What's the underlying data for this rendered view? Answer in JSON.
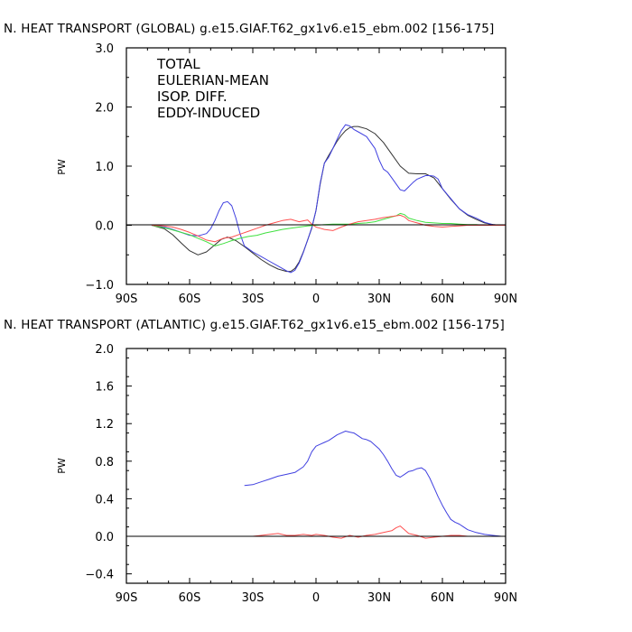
{
  "chart_data": [
    {
      "type": "line",
      "title": "N. HEAT TRANSPORT (GLOBAL) g.e15.GIAF.T62_gx1v6.e15_ebm.002 [156-175]",
      "xlabel": "",
      "ylabel": "PW",
      "xlim": [
        -90,
        90
      ],
      "ylim": [
        -1.0,
        3.0
      ],
      "xticks": [
        -90,
        -60,
        -30,
        0,
        30,
        60,
        90
      ],
      "xtick_labels": [
        "90S",
        "60S",
        "30S",
        "0",
        "30N",
        "60N",
        "90N"
      ],
      "yticks": [
        -1.0,
        0.0,
        1.0,
        2.0,
        3.0
      ],
      "ytick_labels": [
        "−1.0",
        "0.0",
        "1.0",
        "2.0",
        "3.0"
      ],
      "grid": false,
      "legend_position": "top-left",
      "series": [
        {
          "name": "TOTAL",
          "color": "#333333",
          "x": [
            -78,
            -72,
            -68,
            -64,
            -60,
            -56,
            -52,
            -48,
            -45,
            -42,
            -38,
            -34,
            -30,
            -26,
            -22,
            -18,
            -14,
            -12,
            -10,
            -8,
            -6,
            -4,
            -2,
            0,
            2,
            4,
            6,
            8,
            10,
            12,
            14,
            16,
            18,
            20,
            24,
            28,
            32,
            36,
            40,
            44,
            48,
            52,
            56,
            60,
            64,
            68,
            72,
            76,
            80,
            84,
            88,
            90
          ],
          "values": [
            0.0,
            -0.06,
            -0.16,
            -0.3,
            -0.43,
            -0.5,
            -0.45,
            -0.33,
            -0.24,
            -0.2,
            -0.26,
            -0.36,
            -0.47,
            -0.58,
            -0.67,
            -0.74,
            -0.78,
            -0.78,
            -0.73,
            -0.62,
            -0.45,
            -0.25,
            -0.05,
            0.25,
            0.7,
            1.05,
            1.18,
            1.3,
            1.42,
            1.52,
            1.6,
            1.65,
            1.67,
            1.67,
            1.63,
            1.55,
            1.4,
            1.2,
            1.0,
            0.88,
            0.87,
            0.87,
            0.8,
            0.62,
            0.44,
            0.28,
            0.17,
            0.1,
            0.04,
            0.01,
            0.0,
            0.0
          ]
        },
        {
          "name": "EULERIAN-MEAN",
          "color": "#4040e0",
          "x": [
            -78,
            -72,
            -68,
            -64,
            -60,
            -56,
            -52,
            -50,
            -48,
            -46,
            -44,
            -42,
            -40,
            -38,
            -36,
            -34,
            -30,
            -26,
            -22,
            -18,
            -14,
            -12,
            -10,
            -8,
            -6,
            -4,
            -2,
            0,
            2,
            4,
            6,
            8,
            10,
            12,
            14,
            16,
            18,
            20,
            24,
            28,
            30,
            32,
            34,
            36,
            38,
            40,
            42,
            44,
            46,
            48,
            52,
            54,
            56,
            58,
            60,
            64,
            68,
            72,
            76,
            80,
            84,
            88,
            90
          ],
          "values": [
            0.0,
            -0.03,
            -0.07,
            -0.12,
            -0.17,
            -0.18,
            -0.14,
            -0.06,
            0.08,
            0.25,
            0.38,
            0.4,
            0.33,
            0.12,
            -0.15,
            -0.35,
            -0.45,
            -0.53,
            -0.61,
            -0.69,
            -0.77,
            -0.8,
            -0.76,
            -0.64,
            -0.46,
            -0.25,
            -0.04,
            0.25,
            0.72,
            1.05,
            1.15,
            1.3,
            1.45,
            1.6,
            1.7,
            1.68,
            1.62,
            1.58,
            1.5,
            1.3,
            1.1,
            0.95,
            0.9,
            0.8,
            0.7,
            0.6,
            0.58,
            0.65,
            0.72,
            0.78,
            0.84,
            0.84,
            0.83,
            0.78,
            0.62,
            0.45,
            0.28,
            0.18,
            0.12,
            0.05,
            0.01,
            0.0,
            0.0
          ]
        },
        {
          "name": "ISOP. DIFF.",
          "color": "#40e040",
          "x": [
            -78,
            -70,
            -64,
            -60,
            -56,
            -52,
            -48,
            -44,
            -40,
            -36,
            -32,
            -28,
            -24,
            -20,
            -16,
            -12,
            -8,
            -4,
            0,
            4,
            8,
            12,
            16,
            20,
            24,
            28,
            32,
            36,
            38,
            40,
            42,
            44,
            48,
            52,
            56,
            60,
            64,
            68,
            72,
            76,
            80,
            84,
            88,
            90
          ],
          "values": [
            0.0,
            -0.06,
            -0.12,
            -0.16,
            -0.22,
            -0.28,
            -0.35,
            -0.31,
            -0.26,
            -0.22,
            -0.19,
            -0.17,
            -0.13,
            -0.1,
            -0.07,
            -0.05,
            -0.03,
            -0.01,
            0.0,
            0.01,
            0.02,
            0.02,
            0.02,
            0.03,
            0.04,
            0.06,
            0.1,
            0.14,
            0.16,
            0.2,
            0.18,
            0.12,
            0.08,
            0.05,
            0.04,
            0.03,
            0.03,
            0.02,
            0.01,
            0.01,
            0.0,
            0.0,
            0.0,
            0.0
          ]
        },
        {
          "name": "EDDY-INDUCED",
          "color": "#ff5050",
          "x": [
            -78,
            -72,
            -68,
            -64,
            -60,
            -56,
            -52,
            -48,
            -44,
            -40,
            -36,
            -32,
            -28,
            -24,
            -20,
            -16,
            -12,
            -8,
            -4,
            -2,
            0,
            2,
            4,
            8,
            12,
            16,
            20,
            24,
            28,
            32,
            36,
            40,
            42,
            44,
            48,
            52,
            56,
            60,
            64,
            68,
            72,
            76,
            80,
            84,
            88,
            90
          ],
          "values": [
            0.0,
            -0.01,
            -0.03,
            -0.07,
            -0.12,
            -0.18,
            -0.25,
            -0.28,
            -0.22,
            -0.2,
            -0.15,
            -0.1,
            -0.05,
            0.0,
            0.04,
            0.08,
            0.1,
            0.06,
            0.09,
            0.02,
            -0.03,
            -0.05,
            -0.07,
            -0.09,
            -0.03,
            0.02,
            0.06,
            0.08,
            0.1,
            0.13,
            0.15,
            0.17,
            0.14,
            0.08,
            0.04,
            0.0,
            -0.02,
            -0.03,
            -0.02,
            -0.01,
            0.0,
            0.0,
            0.0,
            0.0,
            0.0,
            0.0
          ]
        }
      ]
    },
    {
      "type": "line",
      "title": "N. HEAT TRANSPORT (ATLANTIC) g.e15.GIAF.T62_gx1v6.e15_ebm.002 [156-175]",
      "xlabel": "",
      "ylabel": "PW",
      "xlim": [
        -90,
        90
      ],
      "ylim": [
        -0.5,
        2.0
      ],
      "xticks": [
        -90,
        -60,
        -30,
        0,
        30,
        60,
        90
      ],
      "xtick_labels": [
        "90S",
        "60S",
        "30S",
        "0",
        "30N",
        "60N",
        "90N"
      ],
      "yticks": [
        -0.4,
        0.0,
        0.4,
        0.8,
        1.2,
        1.6,
        2.0
      ],
      "ytick_labels": [
        "−0.4",
        "0.0",
        "0.4",
        "0.8",
        "1.2",
        "1.6",
        "2.0"
      ],
      "grid": false,
      "series": [
        {
          "color": "#4040e0",
          "x": [
            -34,
            -30,
            -26,
            -22,
            -18,
            -14,
            -10,
            -6,
            -4,
            -2,
            0,
            2,
            4,
            6,
            8,
            10,
            12,
            14,
            16,
            18,
            20,
            22,
            24,
            26,
            28,
            30,
            32,
            34,
            36,
            38,
            40,
            42,
            44,
            46,
            48,
            50,
            52,
            54,
            56,
            58,
            60,
            62,
            64,
            66,
            68,
            70,
            72,
            76,
            80,
            84,
            88,
            90
          ],
          "values": [
            0.54,
            0.55,
            0.58,
            0.61,
            0.64,
            0.66,
            0.68,
            0.74,
            0.8,
            0.9,
            0.96,
            0.98,
            1.0,
            1.02,
            1.05,
            1.08,
            1.1,
            1.12,
            1.11,
            1.1,
            1.07,
            1.04,
            1.03,
            1.01,
            0.97,
            0.93,
            0.87,
            0.8,
            0.72,
            0.65,
            0.63,
            0.66,
            0.69,
            0.7,
            0.72,
            0.73,
            0.7,
            0.62,
            0.52,
            0.42,
            0.33,
            0.25,
            0.18,
            0.15,
            0.13,
            0.1,
            0.07,
            0.04,
            0.02,
            0.01,
            0.0,
            0.0
          ]
        },
        {
          "color": "#ff5050",
          "x": [
            -34,
            -30,
            -26,
            -22,
            -18,
            -14,
            -10,
            -6,
            -2,
            0,
            4,
            8,
            12,
            16,
            20,
            24,
            28,
            32,
            36,
            38,
            40,
            42,
            44,
            48,
            52,
            56,
            60,
            64,
            68,
            72,
            76,
            80,
            84,
            88,
            90
          ],
          "values": [
            0.0,
            0.0,
            0.01,
            0.02,
            0.03,
            0.01,
            0.01,
            0.02,
            0.01,
            0.02,
            0.01,
            -0.01,
            -0.02,
            0.01,
            -0.01,
            0.01,
            0.02,
            0.04,
            0.06,
            0.09,
            0.11,
            0.07,
            0.03,
            0.01,
            -0.02,
            -0.01,
            0.0,
            0.01,
            0.01,
            0.0,
            0.0,
            0.0,
            0.0,
            0.0,
            0.0
          ]
        }
      ]
    }
  ]
}
